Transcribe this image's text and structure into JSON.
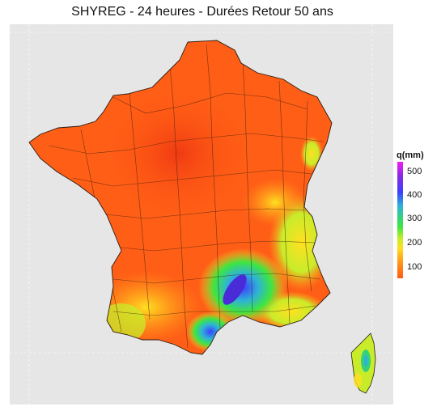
{
  "map": {
    "title": "SHYREG - 24 heures - Durées Retour 50 ans",
    "legend": {
      "title": "q(mm)",
      "ticks": [
        "500",
        "400",
        "300",
        "200",
        "100"
      ],
      "colors": {
        "v500": "#f21cf2",
        "v400": "#3d3dff",
        "v300": "#2eb3d6",
        "v200": "#3fe63f",
        "v150": "#ffe020",
        "v100": "#ff5a14"
      }
    },
    "regions": [
      "france-mainland",
      "corsica"
    ]
  }
}
